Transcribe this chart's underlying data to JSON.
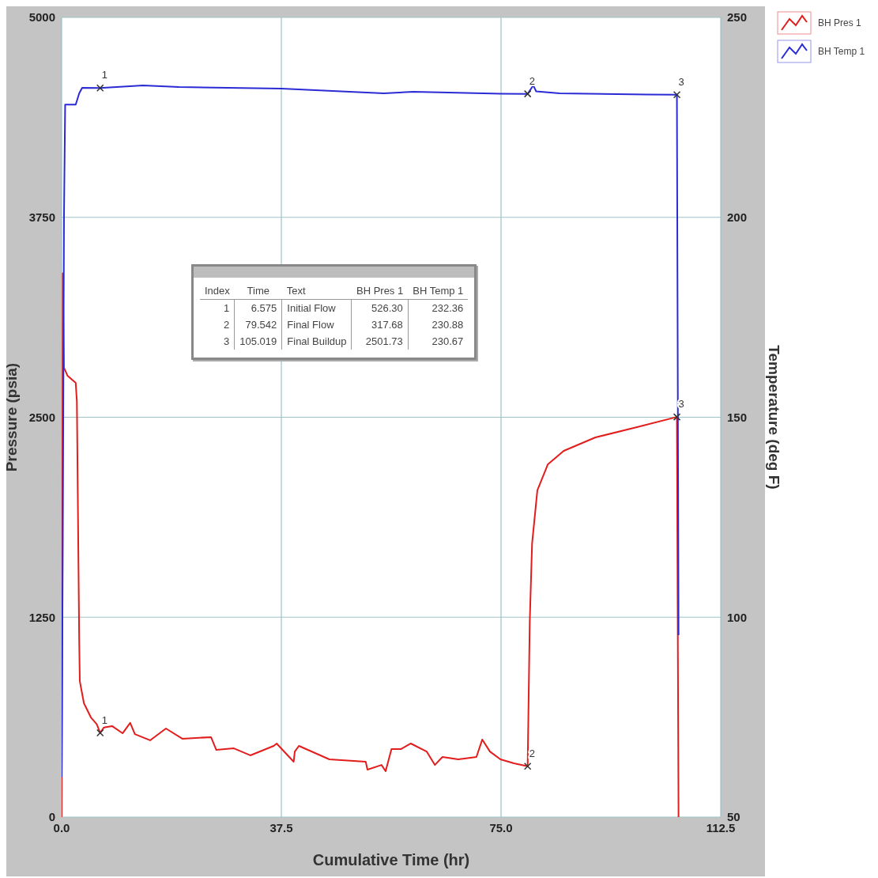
{
  "chart_data": {
    "type": "line",
    "xlabel": "Cumulative Time (hr)",
    "ylabel": "Pressure (psia)",
    "y2label": "Temperature (deg F)",
    "xlim": [
      0,
      112.5
    ],
    "xticks": [
      {
        "value": 0,
        "label": "0.0"
      },
      {
        "value": 37.5,
        "label": "37.5"
      },
      {
        "value": 75,
        "label": "75.0"
      },
      {
        "value": 112.5,
        "label": "112.5"
      }
    ],
    "ylim": [
      0,
      5000
    ],
    "yticks": [
      0,
      1250,
      2500,
      3750,
      5000
    ],
    "y2lim": [
      50,
      250
    ],
    "y2ticks": [
      50,
      100,
      150,
      200,
      250
    ],
    "grid": true,
    "legend": "top right",
    "line_style": "solid",
    "marker": "none",
    "series": [
      {
        "name": "BH Pres 1",
        "color": "#e31c1c",
        "x": [
          0,
          0.1,
          0.2,
          0.4,
          1.0,
          2.4,
          2.6,
          3.0,
          3.1,
          3.8,
          5.0,
          6.0,
          6.575,
          7.2,
          8.6,
          10.4,
          11.7,
          12.5,
          15.1,
          17.8,
          20.6,
          25.5,
          26.4,
          29.4,
          32.2,
          36.2,
          36.7,
          39.6,
          39.8,
          40.5,
          45.7,
          51.9,
          52.2,
          54.6,
          55.3,
          56.3,
          57.9,
          59.6,
          62.3,
          63.7,
          65.0,
          67.7,
          70.8,
          71.8,
          73.1,
          74.9,
          77.2,
          79.542,
          79.6,
          79.9,
          80.3,
          81.2,
          83.0,
          85.7,
          91.1,
          98.2,
          105.019,
          105.3
        ],
        "values": [
          0,
          1200,
          3400,
          2810,
          2760,
          2715,
          2600,
          1100,
          850,
          712,
          623,
          580,
          526.3,
          560,
          569,
          524,
          589,
          519,
          480,
          554,
          490,
          500,
          420,
          430,
          386,
          445,
          460,
          346,
          410,
          445,
          361,
          346,
          297,
          326,
          287,
          425,
          425,
          460,
          410,
          326,
          376,
          361,
          376,
          485,
          410,
          361,
          336,
          317.68,
          460,
          1217,
          1711,
          2043,
          2206,
          2290,
          2374,
          2438,
          2501.73,
          0
        ]
      },
      {
        "name": "BH Temp 1",
        "color": "#2b2bd6",
        "axis": "y2",
        "x": [
          0,
          0.2,
          0.4,
          0.6,
          2.4,
          3.0,
          3.5,
          6.575,
          13.9,
          20,
          37.5,
          55,
          60,
          75,
          79.542,
          80.5,
          81,
          85,
          100,
          105.019,
          105.3
        ],
        "values": [
          60,
          120,
          200,
          228.2,
          228.2,
          231,
          232.4,
          232.36,
          233,
          232.6,
          232.2,
          231,
          231.4,
          230.9,
          230.88,
          233,
          231.5,
          231,
          230.7,
          230.67,
          95.5
        ]
      },
      {
        "type": "scatter",
        "color": "#333333",
        "marker": "cross",
        "x": [
          6.575,
          79.542,
          105.019
        ],
        "values": [
          526.3,
          317.68,
          2501.73
        ]
      },
      {
        "type": "scatter",
        "color": "#333333",
        "marker": "cross",
        "axis": "y2",
        "x": [
          6.575,
          79.542,
          105.019
        ],
        "values": [
          232.36,
          230.88,
          230.67
        ]
      }
    ],
    "annotations": [
      {
        "text": "1",
        "x": 6.575,
        "y": 526.3
      },
      {
        "text": "2",
        "x": 79.542,
        "y": 317.68
      },
      {
        "text": "3",
        "x": 105.019,
        "y": 2501.73
      },
      "1",
      "2",
      "3",
      "Index",
      "Time",
      "Text",
      "BH Pres 1",
      "BH Temp 1",
      "1",
      "6.575",
      "Initial Flow",
      "526.30",
      "232.36",
      "2",
      "79.542",
      "Final Flow",
      "317.68",
      "230.88",
      "3",
      "105.019",
      "Final Buildup",
      "2501.73",
      "230.67"
    ]
  }
}
